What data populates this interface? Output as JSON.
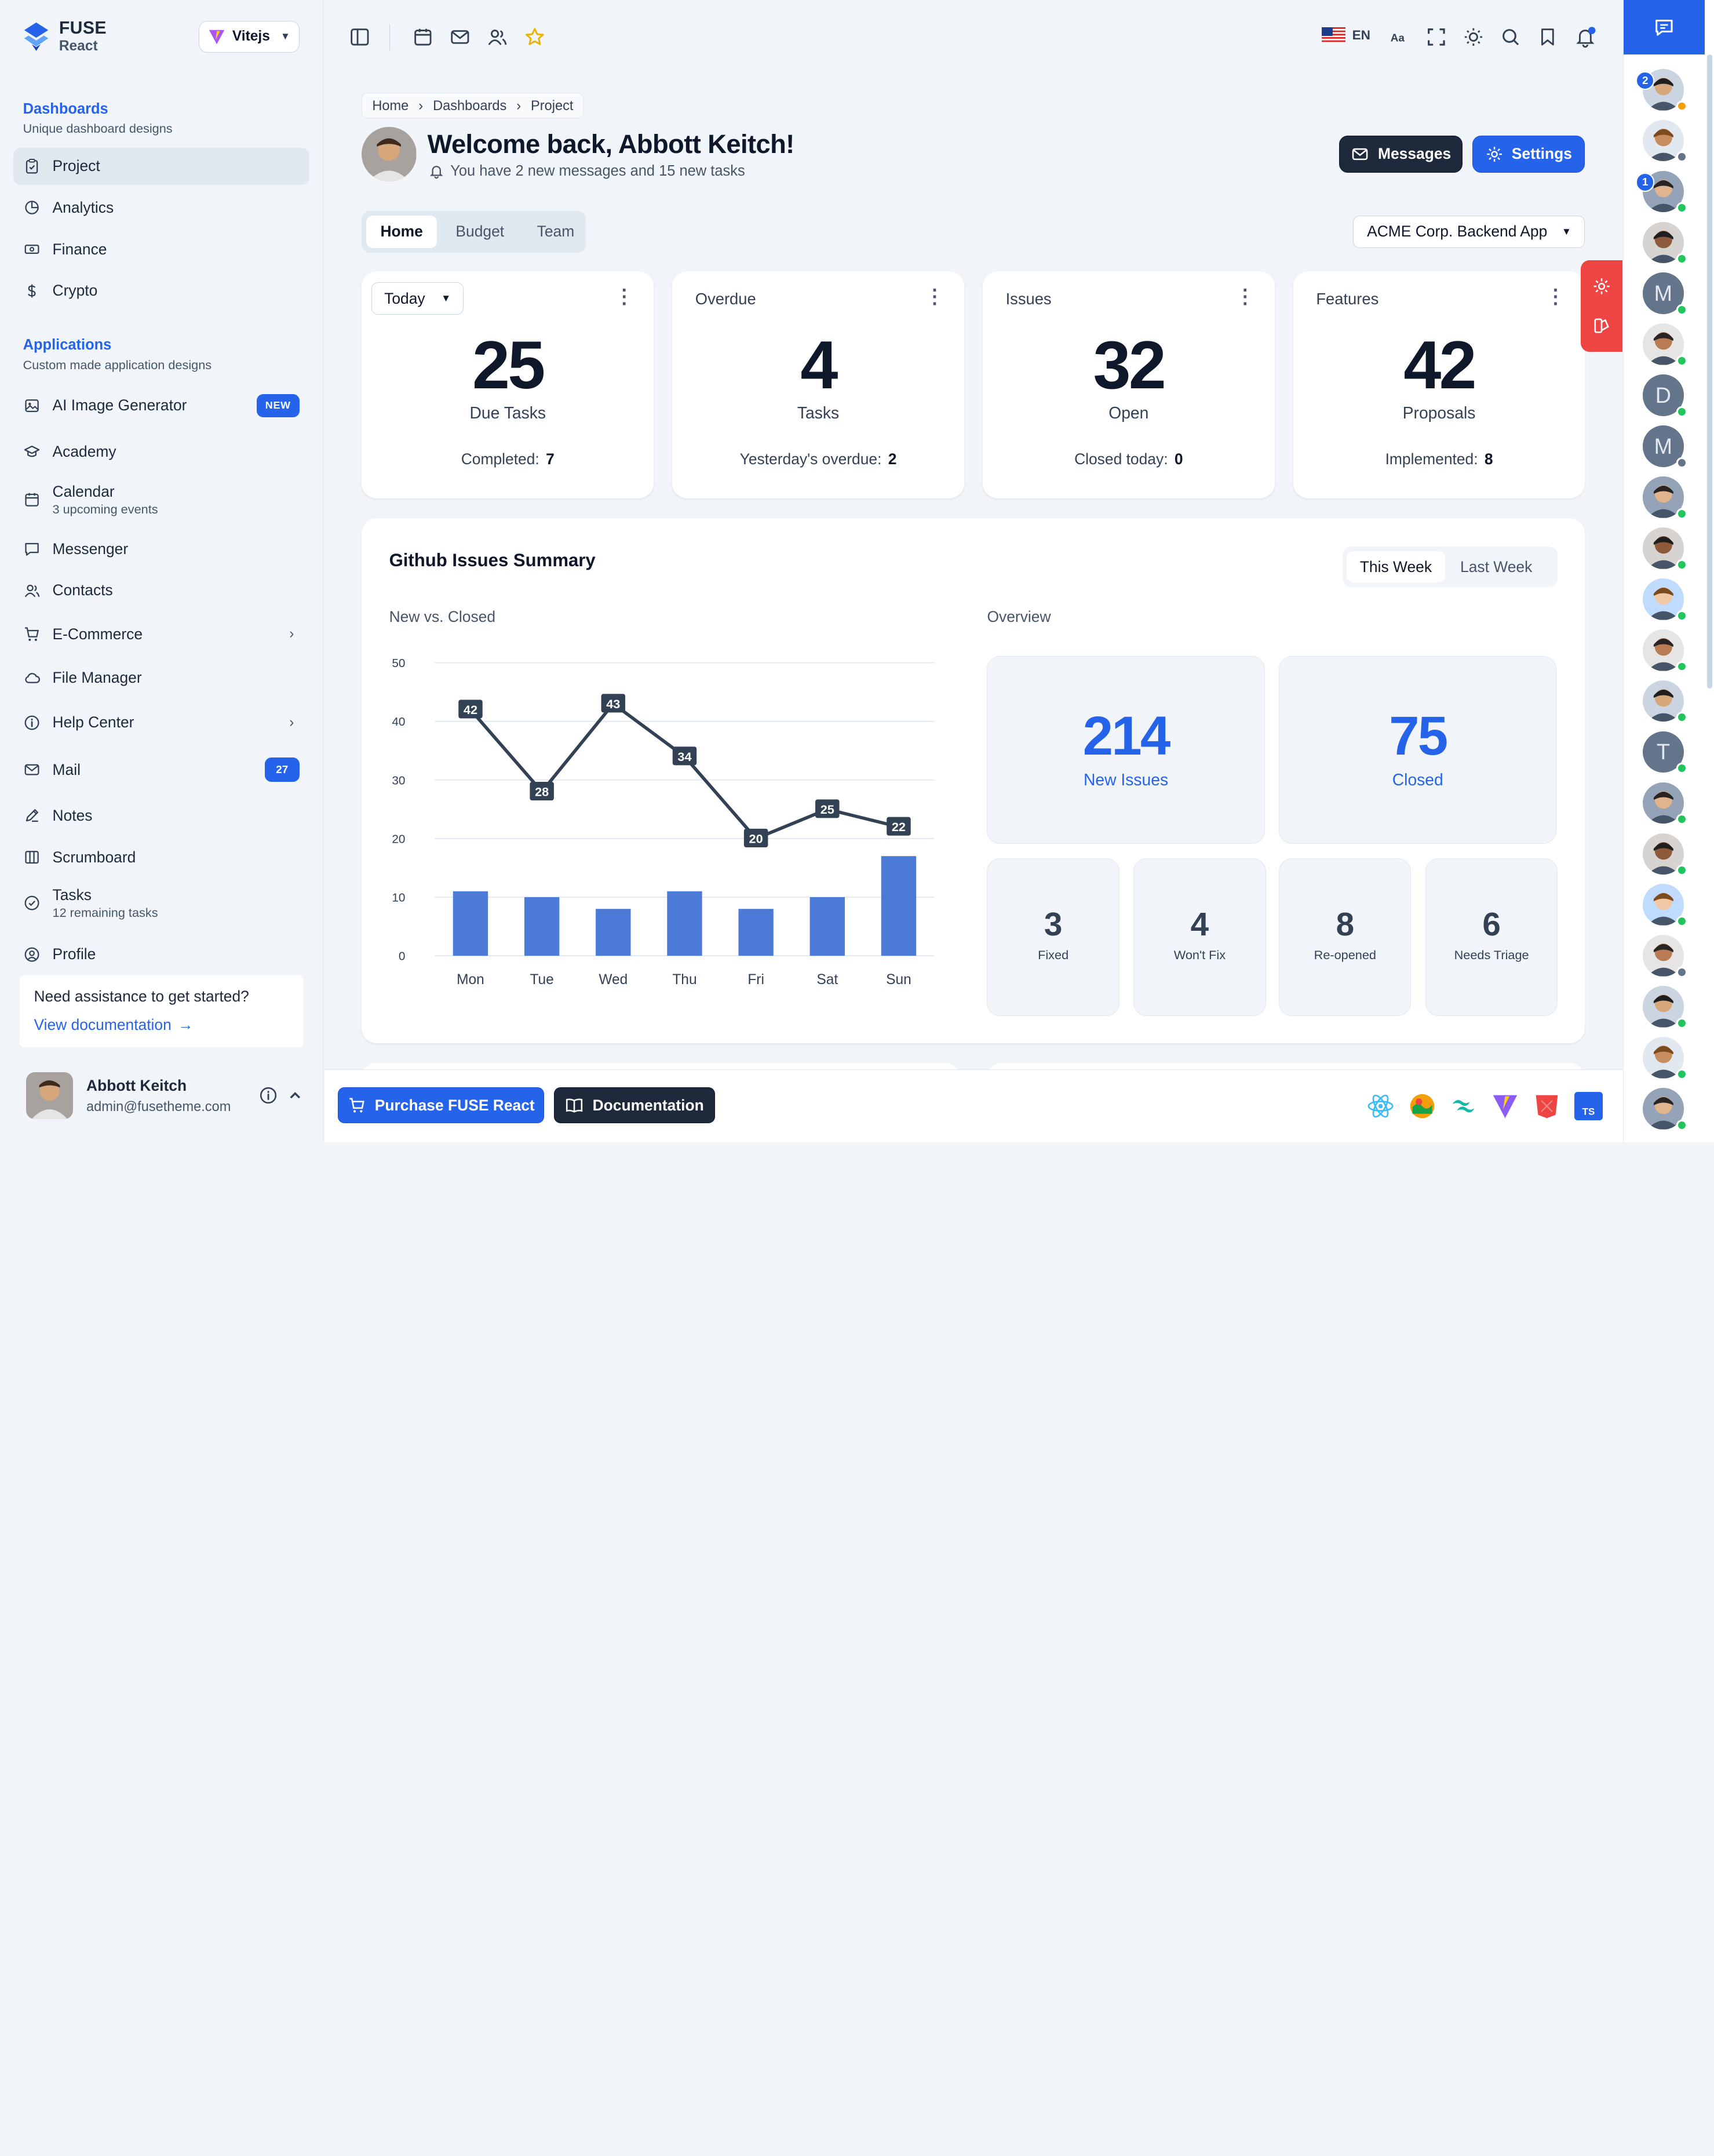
{
  "brand": {
    "name": "FUSE",
    "sub": "React"
  },
  "framework_selector": {
    "label": "Vitejs"
  },
  "sidebar": {
    "dashboards": {
      "title": "Dashboards",
      "subtitle": "Unique dashboard designs",
      "items": [
        {
          "label": "Project",
          "icon": "clipboard-icon",
          "active": true
        },
        {
          "label": "Analytics",
          "icon": "chart-pie-icon"
        },
        {
          "label": "Finance",
          "icon": "cash-icon"
        },
        {
          "label": "Crypto",
          "icon": "dollar-icon"
        }
      ]
    },
    "applications": {
      "title": "Applications",
      "subtitle": "Custom made application designs",
      "items": [
        {
          "label": "AI Image Generator",
          "icon": "image-icon",
          "badge": "NEW"
        },
        {
          "label": "Academy",
          "icon": "academic-cap-icon"
        },
        {
          "label": "Calendar",
          "sub": "3 upcoming events",
          "icon": "calendar-icon"
        },
        {
          "label": "Messenger",
          "icon": "chat-icon"
        },
        {
          "label": "Contacts",
          "icon": "users-icon"
        },
        {
          "label": "E-Commerce",
          "icon": "cart-icon",
          "chevron": true
        },
        {
          "label": "File Manager",
          "icon": "cloud-icon"
        },
        {
          "label": "Help Center",
          "icon": "info-icon",
          "chevron": true
        },
        {
          "label": "Mail",
          "icon": "mail-icon",
          "badge": "27"
        },
        {
          "label": "Notes",
          "icon": "pencil-icon"
        },
        {
          "label": "Scrumboard",
          "icon": "columns-icon"
        },
        {
          "label": "Tasks",
          "sub": "12 remaining tasks",
          "icon": "check-circle-icon"
        },
        {
          "label": "Profile",
          "icon": "user-circle-icon"
        }
      ]
    },
    "help": {
      "question": "Need assistance to get started?",
      "link": "View documentation"
    },
    "user": {
      "name": "Abbott Keitch",
      "email": "admin@fusetheme.com"
    }
  },
  "topbar": {
    "language": "EN"
  },
  "breadcrumb": [
    "Home",
    "Dashboards",
    "Project"
  ],
  "welcome": {
    "title": "Welcome back, Abbott Keitch!",
    "subtitle": "You have 2 new messages and 15 new tasks"
  },
  "actions": {
    "messages": "Messages",
    "settings": "Settings"
  },
  "tabs": [
    {
      "label": "Home",
      "active": true
    },
    {
      "label": "Budget"
    },
    {
      "label": "Team"
    }
  ],
  "project_selector": {
    "value": "ACME Corp. Backend App"
  },
  "kpis": [
    {
      "header": "Today",
      "is_select": true,
      "value": "25",
      "label": "Due Tasks",
      "foot_label": "Completed:",
      "foot_value": "7",
      "color": "#0f172a"
    },
    {
      "header": "Overdue",
      "value": "4",
      "label": "Tasks",
      "foot_label": "Yesterday's overdue:",
      "foot_value": "2"
    },
    {
      "header": "Issues",
      "value": "32",
      "label": "Open",
      "foot_label": "Closed today:",
      "foot_value": "0"
    },
    {
      "header": "Features",
      "value": "42",
      "label": "Proposals",
      "foot_label": "Implemented:",
      "foot_value": "8"
    }
  ],
  "github": {
    "title": "Github Issues Summary",
    "periods": [
      {
        "label": "This Week",
        "active": true
      },
      {
        "label": "Last Week"
      }
    ],
    "chart_title": "New vs. Closed",
    "overview_title": "Overview",
    "overview": {
      "big": [
        {
          "value": "214",
          "label": "New Issues"
        },
        {
          "value": "75",
          "label": "Closed"
        }
      ],
      "small": [
        {
          "value": "3",
          "label": "Fixed"
        },
        {
          "value": "4",
          "label": "Won't Fix"
        },
        {
          "value": "8",
          "label": "Re-opened"
        },
        {
          "value": "6",
          "label": "Needs Triage"
        }
      ]
    }
  },
  "chart_data": {
    "type": "bar",
    "categories": [
      "Mon",
      "Tue",
      "Wed",
      "Thu",
      "Fri",
      "Sat",
      "Sun"
    ],
    "ylim": [
      0,
      50
    ],
    "yticks": [
      0,
      10,
      20,
      30,
      40,
      50
    ],
    "series": [
      {
        "type": "line",
        "values": [
          42,
          28,
          43,
          34,
          20,
          25,
          22
        ],
        "color": "#334155",
        "data_labels": true
      },
      {
        "type": "bar",
        "values": [
          11,
          10,
          8,
          11,
          8,
          10,
          17
        ],
        "color": "#4b7bd6"
      }
    ],
    "grid": true
  },
  "bottombar": {
    "purchase": "Purchase FUSE React",
    "docs": "Documentation"
  },
  "colors": {
    "primary": "#2563eb",
    "dark": "#1e293b",
    "danger": "#ef4444",
    "online": "#22c55e"
  },
  "contacts": [
    {
      "kind": "photo",
      "status": "away",
      "badge": "2"
    },
    {
      "kind": "photo",
      "status": "off"
    },
    {
      "kind": "photo",
      "status": "on",
      "badge": "1"
    },
    {
      "kind": "photo",
      "status": "on"
    },
    {
      "kind": "letter",
      "letter": "M",
      "status": "on"
    },
    {
      "kind": "photo",
      "status": "on"
    },
    {
      "kind": "letter",
      "letter": "D",
      "status": "on"
    },
    {
      "kind": "letter",
      "letter": "M",
      "status": "off"
    },
    {
      "kind": "photo",
      "status": "on"
    },
    {
      "kind": "photo",
      "status": "on"
    },
    {
      "kind": "photo",
      "status": "on"
    },
    {
      "kind": "photo",
      "status": "on"
    },
    {
      "kind": "photo",
      "status": "on"
    },
    {
      "kind": "letter",
      "letter": "T",
      "status": "on"
    },
    {
      "kind": "photo",
      "status": "on"
    },
    {
      "kind": "photo",
      "status": "on"
    },
    {
      "kind": "photo",
      "status": "on"
    },
    {
      "kind": "photo",
      "status": "off"
    },
    {
      "kind": "photo",
      "status": "on"
    },
    {
      "kind": "photo",
      "status": "on"
    },
    {
      "kind": "photo",
      "status": "on"
    }
  ]
}
